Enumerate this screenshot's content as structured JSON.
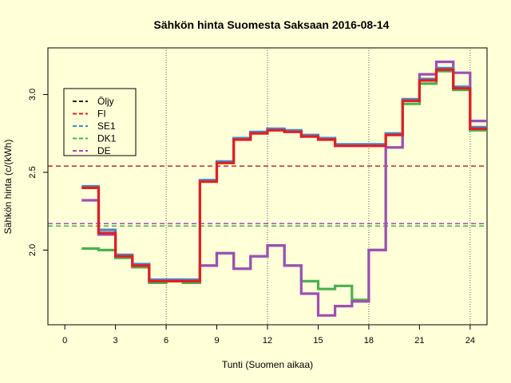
{
  "chart_data": {
    "type": "line",
    "title": "Sähkön hinta Suomesta Saksaan 2016-08-14",
    "xlabel": "Tunti (Suomen aikaa)",
    "ylabel": "Sähkön hinta (c/(kWh)",
    "xlim": [
      -1,
      25
    ],
    "ylim": [
      1.52,
      3.3
    ],
    "x_ticks": [
      0,
      3,
      6,
      9,
      12,
      15,
      18,
      21,
      24
    ],
    "y_ticks": [
      2.0,
      2.5,
      3.0
    ],
    "vlines": [
      6,
      12,
      18,
      24
    ],
    "hours": [
      1,
      2,
      3,
      4,
      5,
      6,
      7,
      8,
      9,
      10,
      11,
      12,
      13,
      14,
      15,
      16,
      17,
      18,
      19,
      20,
      21,
      22,
      23,
      24,
      25
    ],
    "reference_lines": [
      {
        "name": "Öljy",
        "color": "#222222",
        "value": 2.54
      },
      {
        "name": "DK1",
        "color": "#4CAF50",
        "value": 2.155
      },
      {
        "name": "DE",
        "color": "#9C4FB5",
        "value": 2.17
      }
    ],
    "series": [
      {
        "name": "DK1",
        "color": "#4CAF50",
        "values": [
          2.01,
          2.0,
          1.95,
          1.89,
          1.79,
          1.8,
          1.79,
          1.9,
          1.98,
          1.88,
          1.96,
          2.03,
          1.9,
          1.8,
          1.75,
          1.77,
          1.68,
          2.0,
          2.66,
          2.94,
          3.07,
          3.15,
          3.03,
          2.77,
          2.77
        ]
      },
      {
        "name": "DE",
        "color": "#9C4FB5",
        "values": [
          2.32,
          2.1,
          1.96,
          1.9,
          1.8,
          1.81,
          1.8,
          1.9,
          1.98,
          1.88,
          1.96,
          2.03,
          1.9,
          1.72,
          1.58,
          1.64,
          1.67,
          2.0,
          2.66,
          2.96,
          3.13,
          3.21,
          3.14,
          2.83,
          2.83
        ]
      },
      {
        "name": "SE1",
        "color": "#4A86C8",
        "values": [
          2.41,
          2.13,
          1.97,
          1.91,
          1.81,
          1.81,
          1.81,
          2.45,
          2.57,
          2.72,
          2.76,
          2.78,
          2.77,
          2.74,
          2.72,
          2.68,
          2.68,
          2.68,
          2.75,
          2.97,
          3.1,
          3.17,
          3.05,
          2.79,
          2.79
        ]
      },
      {
        "name": "FI",
        "color": "#E02020",
        "values": [
          2.4,
          2.11,
          1.96,
          1.9,
          1.8,
          1.8,
          1.8,
          2.44,
          2.56,
          2.71,
          2.75,
          2.77,
          2.76,
          2.73,
          2.71,
          2.67,
          2.67,
          2.67,
          2.74,
          2.96,
          3.09,
          3.16,
          3.04,
          2.78,
          2.78
        ]
      }
    ],
    "legend": {
      "position": "top-left",
      "entries": [
        {
          "name": "Öljy",
          "color": "#222222"
        },
        {
          "name": "FI",
          "color": "#E02020"
        },
        {
          "name": "SE1",
          "color": "#4A86C8"
        },
        {
          "name": "DK1",
          "color": "#4CAF50"
        },
        {
          "name": "DE",
          "color": "#9C4FB5"
        }
      ]
    }
  }
}
